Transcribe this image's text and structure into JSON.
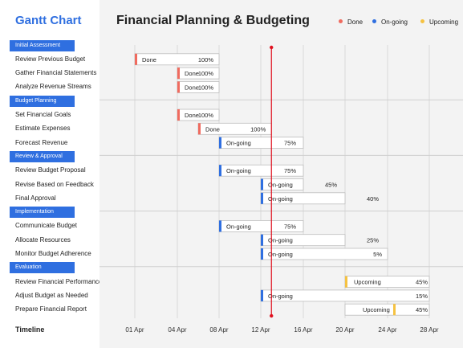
{
  "sidebar": {
    "title": "Gantt Chart",
    "timeline_label": "Timeline"
  },
  "chart_data": {
    "type": "gantt",
    "title": "Financial Planning & Budgeting",
    "x_ticks": [
      "01 Apr",
      "04 Apr",
      "08 Apr",
      "12 Apr",
      "16 Apr",
      "20 Apr",
      "24 Apr",
      "28 Apr"
    ],
    "today_marker_date": "13 Apr",
    "legend": [
      {
        "label": "Done",
        "status": "done"
      },
      {
        "label": "On-going",
        "status": "ongoing"
      },
      {
        "label": "Upcoming",
        "status": "upcoming"
      }
    ],
    "colors": {
      "done": "#f06b5f",
      "ongoing": "#2f6fe0",
      "upcoming": "#f5c242",
      "today": "#e0101e",
      "group": "#2f6fe0"
    },
    "groups": [
      {
        "name": "Initial Assessment",
        "tasks": [
          {
            "name": "Review Previous Budget",
            "start": "01 Apr",
            "end": "08 Apr",
            "status_label": "Done",
            "status": "done",
            "progress": "100%"
          },
          {
            "name": "Gather Financial Statements",
            "start": "04 Apr",
            "end": "08 Apr",
            "status_label": "Done",
            "status": "done",
            "progress": "100%"
          },
          {
            "name": "Analyze Revenue Streams",
            "start": "04 Apr",
            "end": "08 Apr",
            "status_label": "Done",
            "status": "done",
            "progress": "100%"
          }
        ]
      },
      {
        "name": "Budget Planning",
        "tasks": [
          {
            "name": "Set Financial Goals",
            "start": "04 Apr",
            "end": "08 Apr",
            "status_label": "Done",
            "status": "done",
            "progress": "100%"
          },
          {
            "name": "Estimate Expenses",
            "start": "06 Apr",
            "end": "13 Apr",
            "status_label": "Done",
            "status": "done",
            "progress": "100%"
          },
          {
            "name": "Forecast Revenue",
            "start": "08 Apr",
            "end": "16 Apr",
            "status_label": "On-going",
            "status": "ongoing",
            "progress": "75%"
          }
        ]
      },
      {
        "name": "Review & Approval",
        "tasks": [
          {
            "name": "Review Budget Proposal",
            "start": "08 Apr",
            "end": "16 Apr",
            "status_label": "On-going",
            "status": "ongoing",
            "progress": "75%"
          },
          {
            "name": "Revise Based on Feedback",
            "start": "12 Apr",
            "end": "16 Apr",
            "status_label": "On-going",
            "status": "ongoing",
            "progress": "45%"
          },
          {
            "name": "Final Approval",
            "start": "12 Apr",
            "end": "20 Apr",
            "status_label": "On-going",
            "status": "ongoing",
            "progress": "40%"
          }
        ]
      },
      {
        "name": "Implementation",
        "tasks": [
          {
            "name": "Communicate Budget",
            "start": "08 Apr",
            "end": "16 Apr",
            "status_label": "On-going",
            "status": "ongoing",
            "progress": "75%"
          },
          {
            "name": "Allocate Resources",
            "start": "12 Apr",
            "end": "20 Apr",
            "status_label": "On-going",
            "status": "ongoing",
            "progress": "25%"
          },
          {
            "name": "Monitor Budget Adherence",
            "start": "12 Apr",
            "end": "24 Apr",
            "status_label": "On-going",
            "status": "ongoing",
            "progress": "5%"
          }
        ]
      },
      {
        "name": "Evaluation",
        "tasks": [
          {
            "name": "Review Financial Performance",
            "start": "20 Apr",
            "end": "28 Apr",
            "status_label": "Upcoming",
            "status": "upcoming",
            "progress": "45%"
          },
          {
            "name": "Adjust Budget as Needed",
            "start": "12 Apr",
            "end": "28 Apr",
            "status_label": "On-going",
            "status": "ongoing",
            "progress": "15%"
          },
          {
            "name": "Prepare Financial Report",
            "start": "20 Apr",
            "end": "28 Apr",
            "status_label": "Upcoming",
            "status": "upcoming",
            "progress": "45%"
          }
        ]
      }
    ]
  }
}
